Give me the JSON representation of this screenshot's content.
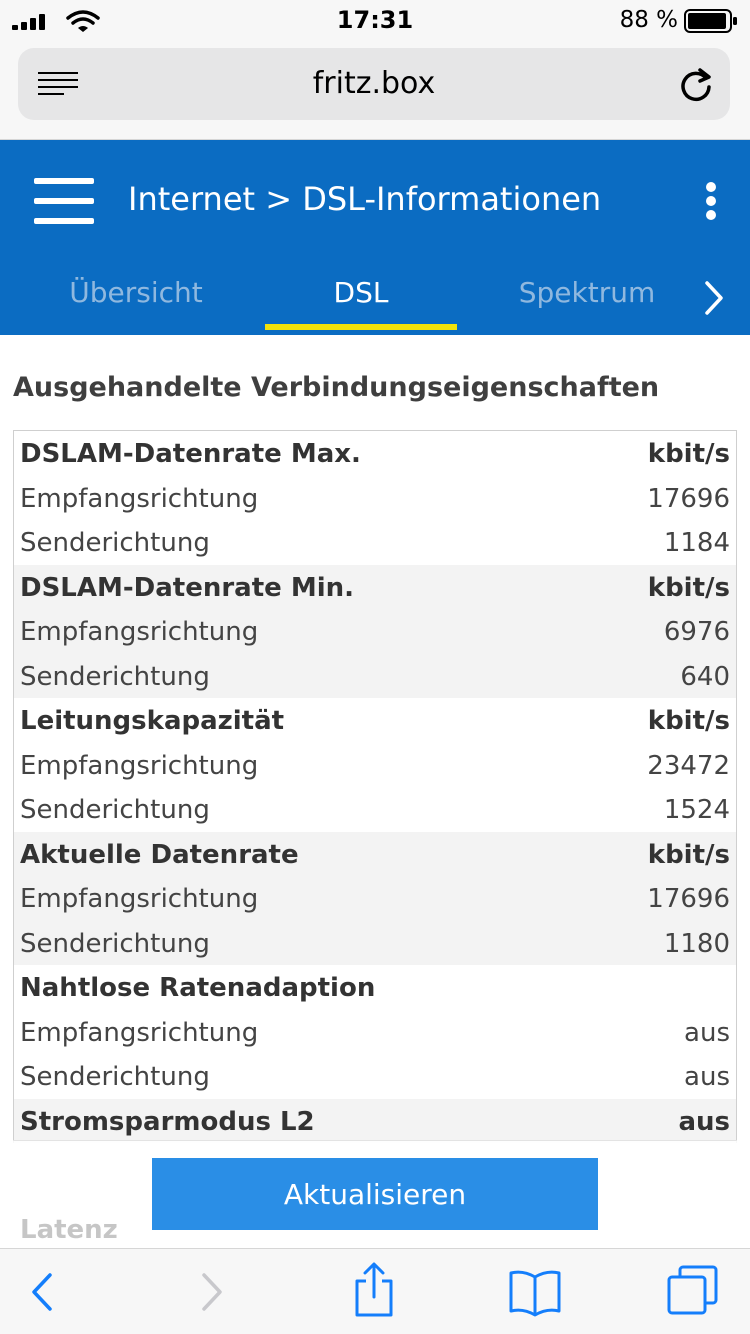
{
  "status_bar": {
    "time": "17:31",
    "battery_percent": "88 %"
  },
  "browser": {
    "url": "fritz.box"
  },
  "header": {
    "breadcrumb": "Internet > DSL-Informationen",
    "tabs": [
      {
        "label": "Übersicht",
        "active": false
      },
      {
        "label": "DSL",
        "active": true
      },
      {
        "label": "Spektrum",
        "active": false
      }
    ],
    "accent_color": "#0b6cc2",
    "active_tab_indicator_color": "#f2e20a"
  },
  "section": {
    "title": "Ausgehandelte Verbindungseigenschaften"
  },
  "table": {
    "groups": [
      {
        "name": "DSLAM-Datenrate Max.",
        "unit": "kbit/s",
        "rows": [
          {
            "label": "Empfangsrichtung",
            "value": "17696"
          },
          {
            "label": "Senderichtung",
            "value": "1184"
          }
        ]
      },
      {
        "name": "DSLAM-Datenrate Min.",
        "unit": "kbit/s",
        "rows": [
          {
            "label": "Empfangsrichtung",
            "value": "6976"
          },
          {
            "label": "Senderichtung",
            "value": "640"
          }
        ]
      },
      {
        "name": "Leitungskapazität",
        "unit": "kbit/s",
        "rows": [
          {
            "label": "Empfangsrichtung",
            "value": "23472"
          },
          {
            "label": "Senderichtung",
            "value": "1524"
          }
        ]
      },
      {
        "name": "Aktuelle Datenrate",
        "unit": "kbit/s",
        "rows": [
          {
            "label": "Empfangsrichtung",
            "value": "17696"
          },
          {
            "label": "Senderichtung",
            "value": "1180"
          }
        ]
      },
      {
        "name": "Nahtlose Ratenadaption",
        "unit": "",
        "rows": [
          {
            "label": "Empfangsrichtung",
            "value": "aus"
          },
          {
            "label": "Senderichtung",
            "value": "aus"
          }
        ]
      },
      {
        "name": "Stromsparmodus L2",
        "unit": "aus",
        "rows": []
      }
    ]
  },
  "next_section_title": "Latenz",
  "refresh_button": "Aktualisieren",
  "toolbar": {
    "icons": [
      "back-icon",
      "forward-icon",
      "share-icon",
      "bookmarks-icon",
      "tabs-icon"
    ],
    "icon_color": "#147efb"
  }
}
